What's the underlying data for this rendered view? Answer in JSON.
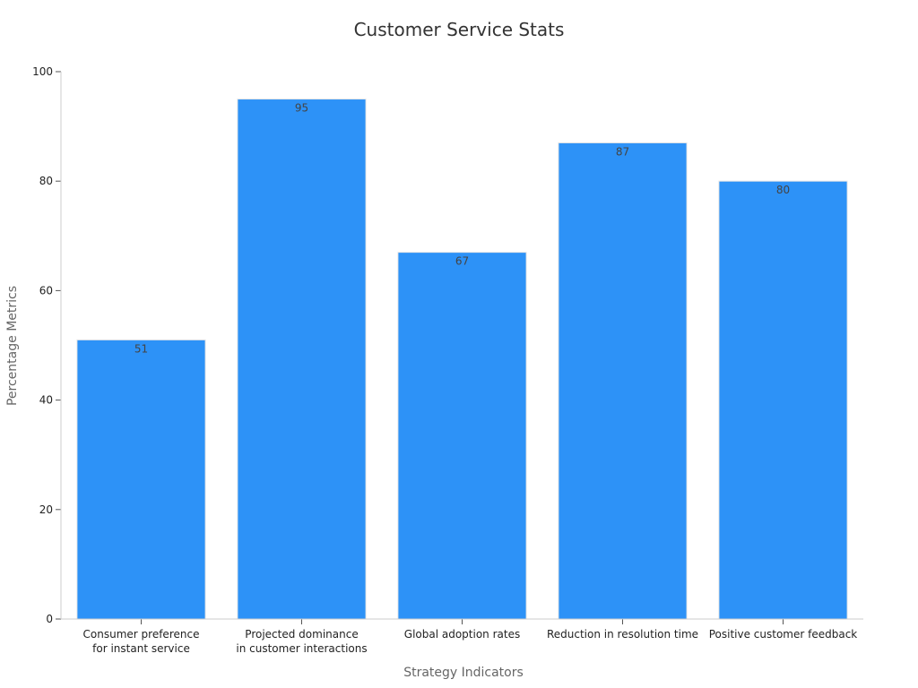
{
  "chart_data": {
    "type": "bar",
    "title": "Customer Service Stats",
    "xlabel": "Strategy Indicators",
    "ylabel": "Percentage Metrics",
    "categories": [
      [
        "Consumer preference",
        "for instant service"
      ],
      [
        "Projected dominance",
        "in customer interactions"
      ],
      [
        "Global adoption rates"
      ],
      [
        "Reduction in resolution time"
      ],
      [
        "Positive customer feedback"
      ]
    ],
    "values": [
      51,
      95,
      67,
      87,
      80
    ],
    "ylim": [
      0,
      100
    ],
    "yticks": [
      0,
      20,
      40,
      60,
      80,
      100
    ],
    "grid": false,
    "legend": "none",
    "bar_color": "#2d92f7"
  }
}
